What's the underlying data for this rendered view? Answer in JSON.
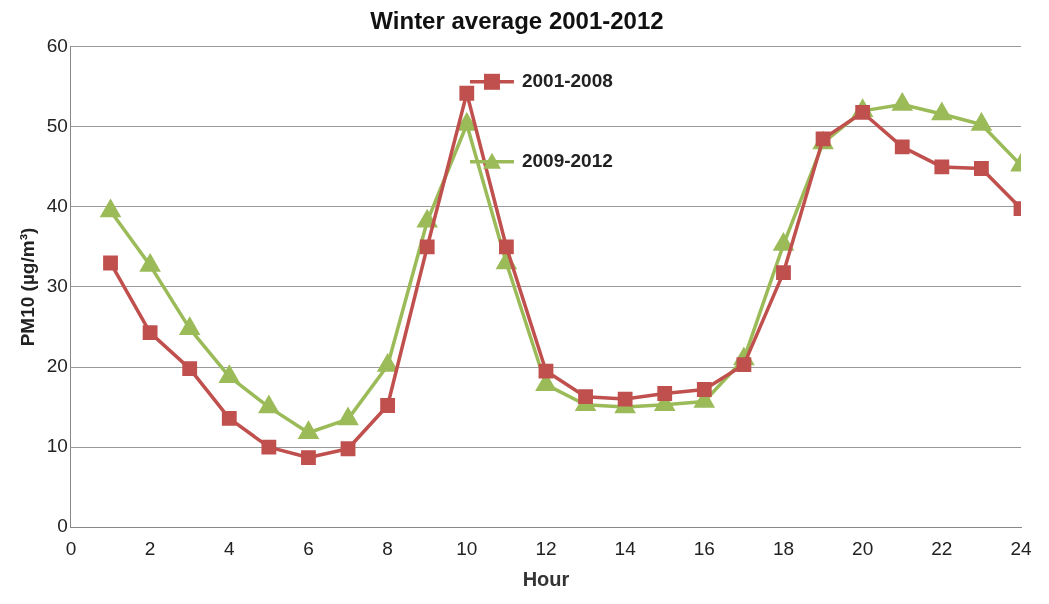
{
  "chart_data": {
    "type": "line",
    "title": "Winter average 2001-2012",
    "xlabel": "Hour",
    "ylabel": "PM10 (µg/m³)",
    "x": [
      1,
      2,
      3,
      4,
      5,
      6,
      7,
      8,
      9,
      10,
      11,
      12,
      13,
      14,
      15,
      16,
      17,
      18,
      19,
      20,
      21,
      22,
      23,
      24
    ],
    "series": [
      {
        "name": "2001-2008",
        "color": "#c0504d",
        "marker": "square",
        "values": [
          33,
          24.3,
          19.8,
          13.6,
          10,
          8.7,
          9.8,
          15.2,
          35,
          54.2,
          35,
          19.5,
          16.3,
          16,
          16.7,
          17.2,
          20.3,
          31.8,
          48.5,
          51.8,
          47.5,
          45,
          44.8,
          39.8
        ]
      },
      {
        "name": "2009-2012",
        "color": "#9bbb59",
        "marker": "triangle",
        "values": [
          39.5,
          32.7,
          24.8,
          18.8,
          15,
          11.8,
          13.5,
          20.2,
          38.2,
          50.3,
          33,
          17.8,
          15.3,
          15,
          15.3,
          15.7,
          21,
          35.3,
          48,
          52,
          52.8,
          51.6,
          50.3,
          45.2
        ]
      }
    ],
    "xlim": [
      0,
      24
    ],
    "xticks": [
      0,
      2,
      4,
      6,
      8,
      10,
      12,
      14,
      16,
      18,
      20,
      22,
      24
    ],
    "ylim": [
      0,
      60
    ],
    "yticks": [
      0,
      10,
      20,
      30,
      40,
      50,
      60
    ],
    "grid": "y",
    "legend": "top",
    "line_style": "solid"
  }
}
